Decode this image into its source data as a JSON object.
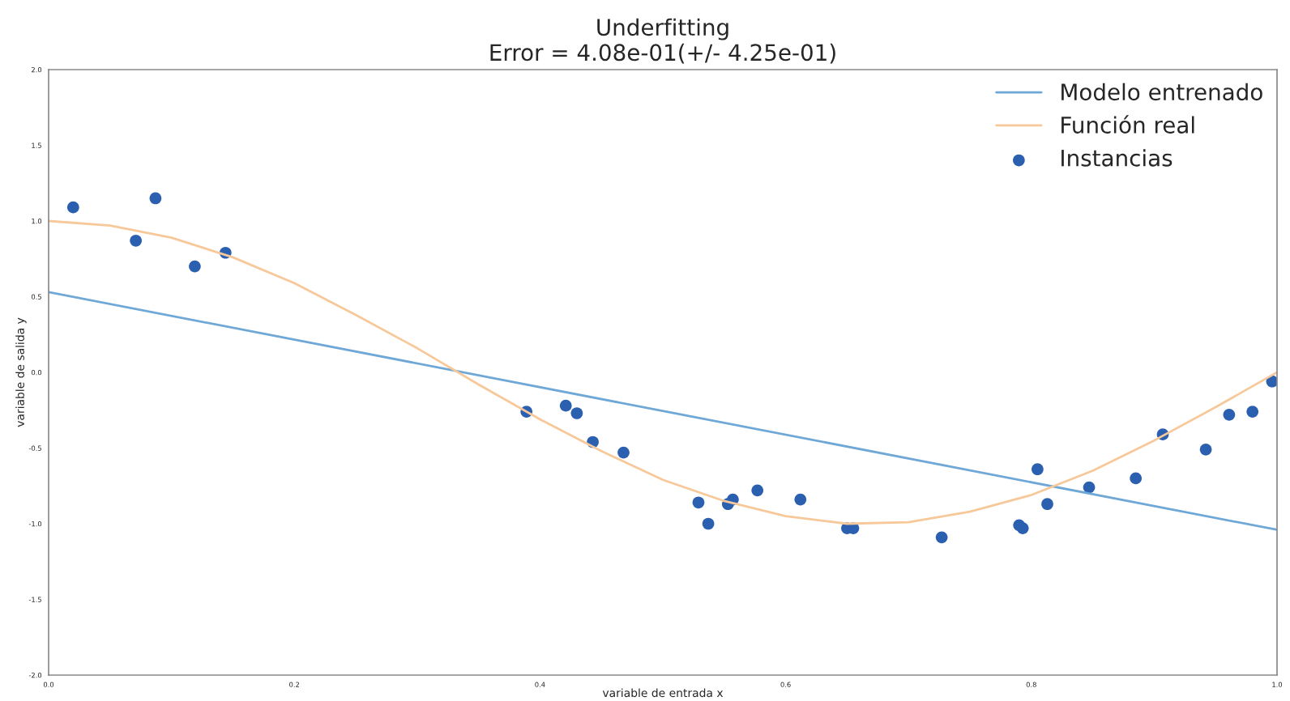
{
  "chart_data": {
    "type": "line",
    "title": "Underfitting\nError = 4.08e-01(+/- 4.25e-01)",
    "xlabel": "variable de entrada x",
    "ylabel": "variable de salida y",
    "xlim": [
      0,
      1
    ],
    "ylim": [
      -2,
      2
    ],
    "xticks": [
      {
        "value": 0,
        "label": "0.0"
      },
      {
        "value": 0.2,
        "label": "0.2"
      },
      {
        "value": 0.4,
        "label": "0.4"
      },
      {
        "value": 0.6,
        "label": "0.6"
      },
      {
        "value": 0.8,
        "label": "0.8"
      },
      {
        "value": 1,
        "label": "1.0"
      }
    ],
    "yticks": [
      {
        "value": -2,
        "label": "-2.0"
      },
      {
        "value": -1.5,
        "label": "-1.5"
      },
      {
        "value": -1,
        "label": "-1.0"
      },
      {
        "value": -0.5,
        "label": "-0.5"
      },
      {
        "value": 0,
        "label": "0.0"
      },
      {
        "value": 0.5,
        "label": "0.5"
      },
      {
        "value": 1,
        "label": "1.0"
      },
      {
        "value": 1.5,
        "label": "1.5"
      },
      {
        "value": 2,
        "label": "2.0"
      }
    ],
    "legend": "top right",
    "grid": false,
    "series": [
      {
        "name": "Modelo entrenado",
        "color": "#6fa8d6",
        "x": [
          0,
          1
        ],
        "values": [
          0.53,
          -1.04
        ]
      },
      {
        "name": "Función real",
        "color": "#f7c89a",
        "x": [
          0,
          0.05,
          0.1,
          0.15,
          0.2,
          0.25,
          0.3,
          0.35,
          0.4,
          0.45,
          0.5,
          0.55,
          0.6,
          0.65,
          0.7,
          0.75,
          0.8,
          0.85,
          0.9,
          0.95,
          1.0
        ],
        "values": [
          1.0,
          0.97,
          0.89,
          0.76,
          0.59,
          0.38,
          0.16,
          -0.08,
          -0.31,
          -0.52,
          -0.71,
          -0.85,
          -0.95,
          -1.0,
          -0.99,
          -0.92,
          -0.81,
          -0.65,
          -0.45,
          -0.23,
          0.0
        ]
      },
      {
        "name": "Instancias",
        "type": "scatter",
        "color": "#2b5fb0",
        "x": [
          0.02,
          0.071,
          0.087,
          0.119,
          0.144,
          0.389,
          0.421,
          0.43,
          0.443,
          0.468,
          0.529,
          0.537,
          0.553,
          0.557,
          0.577,
          0.612,
          0.65,
          0.655,
          0.727,
          0.79,
          0.793,
          0.805,
          0.813,
          0.847,
          0.885,
          0.907,
          0.942,
          0.961,
          0.98,
          0.996
        ],
        "values": [
          1.09,
          0.87,
          1.15,
          0.7,
          0.79,
          -0.26,
          -0.22,
          -0.27,
          -0.46,
          -0.53,
          -0.86,
          -1.0,
          -0.87,
          -0.84,
          -0.78,
          -0.84,
          -1.03,
          -1.03,
          -1.09,
          -1.01,
          -1.03,
          -0.64,
          -0.87,
          -0.76,
          -0.7,
          -0.41,
          -0.51,
          -0.28,
          -0.26,
          -0.06
        ]
      }
    ]
  }
}
